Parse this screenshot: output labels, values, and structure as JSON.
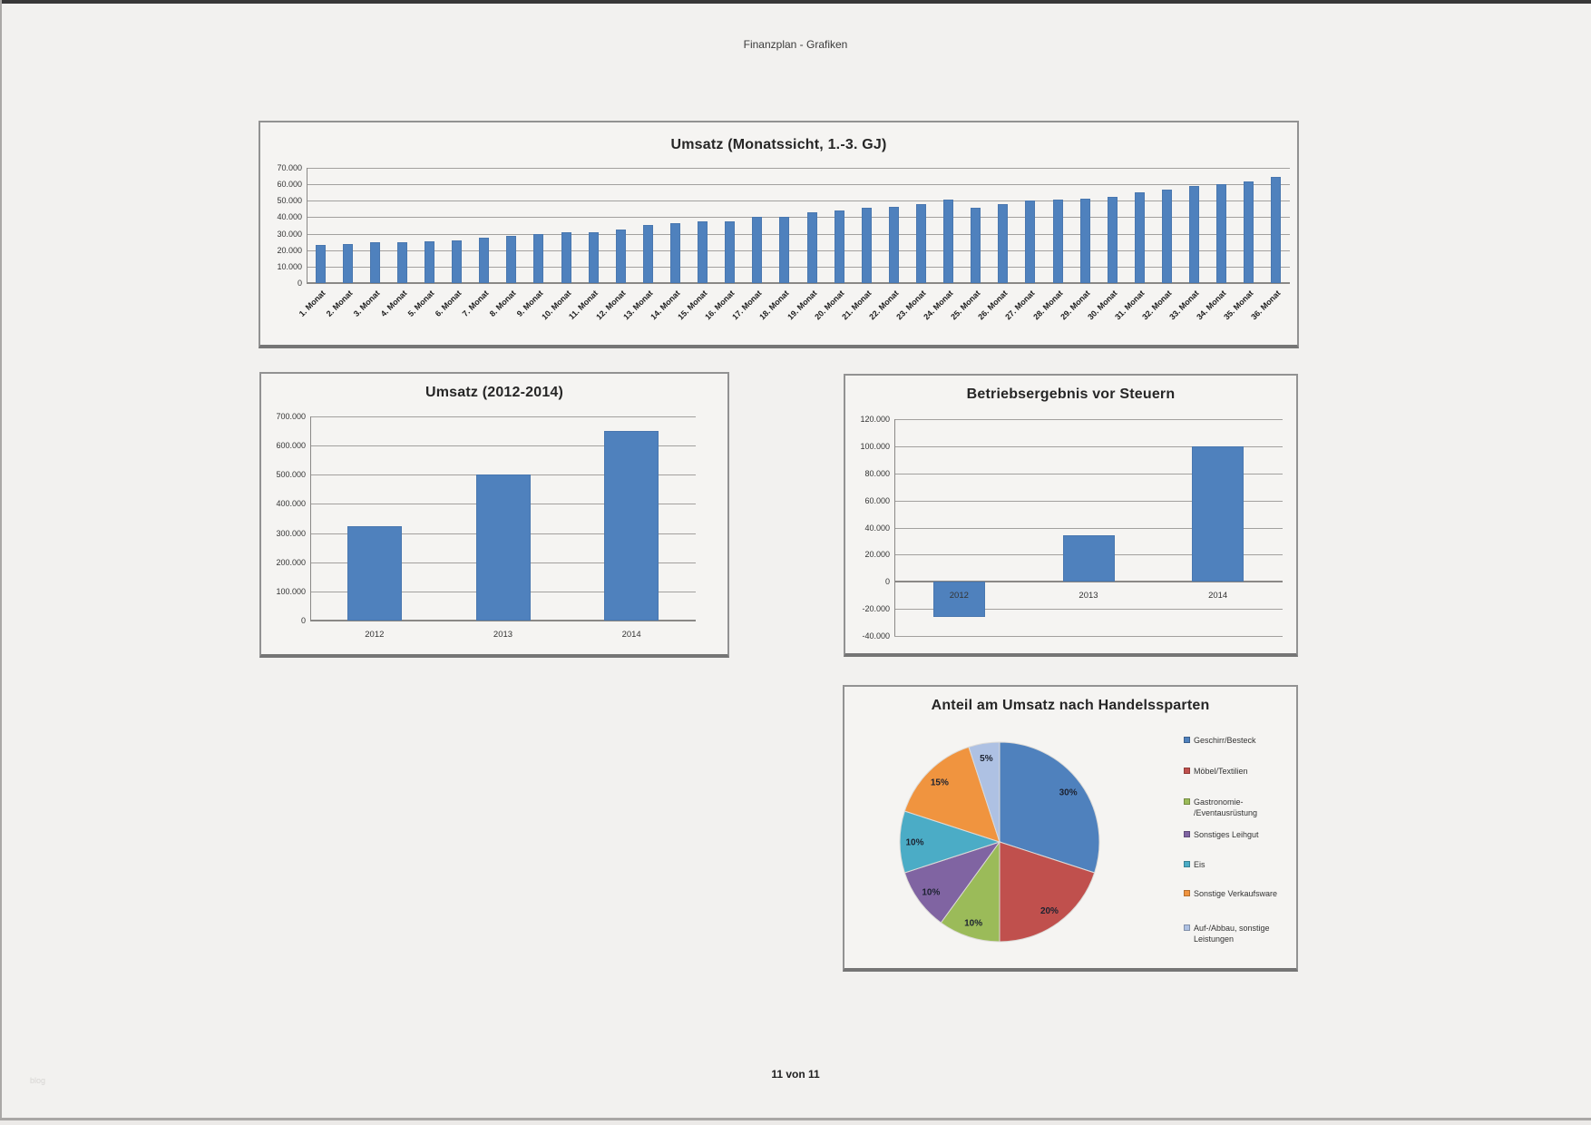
{
  "page": {
    "header": "Finanzplan - Grafiken",
    "footer": "11 von 11",
    "watermark": "blog"
  },
  "colors": {
    "bar": "#4f81bd",
    "grid": "#a2a09e",
    "axis": "#8a8886",
    "page_background": "#f2f1ef"
  },
  "chart_data": [
    {
      "id": "monthly",
      "type": "bar",
      "title": "Umsatz (Monatssicht, 1.-3. GJ)",
      "categories": [
        "1. Monat",
        "2. Monat",
        "3. Monat",
        "4. Monat",
        "5. Monat",
        "6. Monat",
        "7. Monat",
        "8. Monat",
        "9. Monat",
        "10. Monat",
        "11. Monat",
        "12. Monat",
        "13. Monat",
        "14. Monat",
        "15. Monat",
        "16. Monat",
        "17. Monat",
        "18. Monat",
        "19. Monat",
        "20. Monat",
        "21. Monat",
        "22. Monat",
        "23. Monat",
        "24. Monat",
        "25. Monat",
        "26. Monat",
        "27. Monat",
        "28. Monat",
        "29. Monat",
        "30. Monat",
        "31. Monat",
        "32. Monat",
        "33. Monat",
        "34. Monat",
        "35. Monat",
        "36. Monat"
      ],
      "values": [
        23000,
        23800,
        24800,
        25000,
        25500,
        26000,
        27500,
        28800,
        30000,
        30800,
        31000,
        32500,
        35500,
        36500,
        37500,
        37700,
        40000,
        40000,
        42800,
        44300,
        45500,
        46500,
        47700,
        50500,
        46000,
        47700,
        50000,
        50500,
        51300,
        52600,
        55300,
        57000,
        58800,
        60300,
        62000,
        64700
      ],
      "ylim": [
        0,
        70000
      ],
      "ytick_step": 10000,
      "grid": true,
      "bar_color": "#4f81bd"
    },
    {
      "id": "yearly",
      "type": "bar",
      "title": "Umsatz (2012-2014)",
      "categories": [
        "2012",
        "2013",
        "2014"
      ],
      "values": [
        325000,
        500000,
        650000
      ],
      "ylim": [
        0,
        700000
      ],
      "ytick_step": 100000,
      "grid": true,
      "bar_color": "#4f81bd"
    },
    {
      "id": "result",
      "type": "bar",
      "title": "Betriebsergebnis vor Steuern",
      "categories": [
        "2012",
        "2013",
        "2014"
      ],
      "values": [
        -26000,
        34000,
        100000
      ],
      "ylim": [
        -40000,
        120000
      ],
      "ytick_step": 20000,
      "grid": true,
      "bar_color": "#4f81bd"
    },
    {
      "id": "pie",
      "type": "pie",
      "title": "Anteil am Umsatz nach Handelssparten",
      "start_angle_deg": 0,
      "direction": "clockwise",
      "legend_position": "right",
      "slices": [
        {
          "label": "Geschirr/Besteck",
          "legend_lines": [
            "Geschirr/Besteck"
          ],
          "value": 30,
          "pct_label": "30%",
          "color": "#4f81bd"
        },
        {
          "label": "Möbel/Textilien",
          "legend_lines": [
            "Möbel/Textilien"
          ],
          "value": 20,
          "pct_label": "20%",
          "color": "#c0504d"
        },
        {
          "label": "Gastronomie-/Eventausrüstung",
          "legend_lines": [
            "Gastronomie-",
            "/Eventausrüstung"
          ],
          "value": 10,
          "pct_label": "10%",
          "color": "#9bbb59"
        },
        {
          "label": "Sonstiges Leihgut",
          "legend_lines": [
            "Sonstiges Leihgut"
          ],
          "value": 10,
          "pct_label": "10%",
          "color": "#8064a2"
        },
        {
          "label": "Eis",
          "legend_lines": [
            "Eis"
          ],
          "value": 10,
          "pct_label": "10%",
          "color": "#4bacc6"
        },
        {
          "label": "Sonstige Verkaufsware",
          "legend_lines": [
            "Sonstige Verkaufsware"
          ],
          "value": 15,
          "pct_label": "15%",
          "color": "#f0943f"
        },
        {
          "label": "Auf-/Abbau, sonstige Leistungen",
          "legend_lines": [
            "Auf-/Abbau, sonstige",
            "Leistungen"
          ],
          "value": 5,
          "pct_label": "5%",
          "color": "#aec1e3"
        }
      ]
    }
  ]
}
